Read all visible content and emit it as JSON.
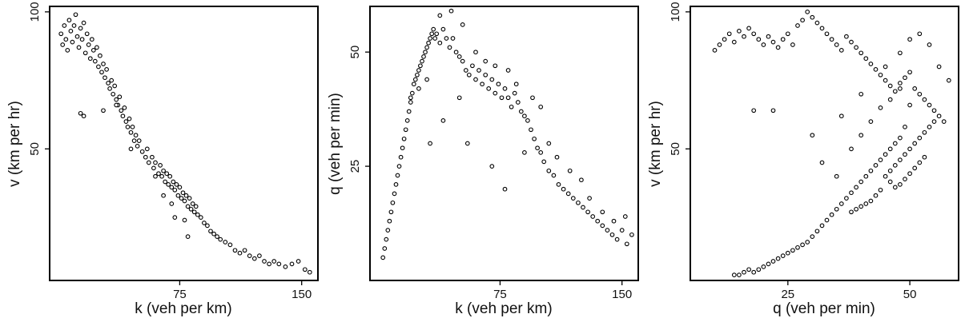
{
  "charts": [
    {
      "type": "scatter",
      "xlabel": "k (veh per km)",
      "ylabel": "v (km per hr)",
      "xticks": [
        75,
        150
      ],
      "yticks": [
        50,
        100
      ],
      "xlim": [
        -5,
        160
      ],
      "ylim": [
        2,
        102
      ]
    },
    {
      "type": "scatter",
      "xlabel": "k (veh per km)",
      "ylabel": "q (veh per min)",
      "xticks": [
        75,
        150
      ],
      "yticks": [
        25,
        50
      ],
      "xlim": [
        -5,
        160
      ],
      "ylim": [
        0,
        60
      ]
    },
    {
      "type": "scatter",
      "xlabel": "q (veh per min)",
      "ylabel": "v (km per hr)",
      "xticks": [
        25,
        50
      ],
      "yticks": [
        50,
        100
      ],
      "xlim": [
        5,
        60
      ],
      "ylim": [
        2,
        102
      ]
    }
  ],
  "chart_data": [
    {
      "type": "scatter",
      "xlabel": "k (veh per km)",
      "ylabel": "v (km per hr)",
      "xlim": [
        -5,
        160
      ],
      "ylim": [
        2,
        102
      ],
      "grid": false,
      "points": [
        [
          2,
          92
        ],
        [
          3,
          88
        ],
        [
          4,
          95
        ],
        [
          5,
          90
        ],
        [
          6,
          86
        ],
        [
          7,
          97
        ],
        [
          8,
          93
        ],
        [
          9,
          89
        ],
        [
          10,
          95
        ],
        [
          11,
          99
        ],
        [
          12,
          91
        ],
        [
          13,
          87
        ],
        [
          14,
          94
        ],
        [
          15,
          90
        ],
        [
          16,
          96
        ],
        [
          17,
          85
        ],
        [
          18,
          92
        ],
        [
          19,
          88
        ],
        [
          20,
          83
        ],
        [
          21,
          90
        ],
        [
          22,
          86
        ],
        [
          23,
          82
        ],
        [
          24,
          87
        ],
        [
          25,
          80
        ],
        [
          26,
          84
        ],
        [
          27,
          78
        ],
        [
          28,
          81
        ],
        [
          29,
          76
        ],
        [
          30,
          79
        ],
        [
          31,
          74
        ],
        [
          32,
          72
        ],
        [
          33,
          75
        ],
        [
          34,
          70
        ],
        [
          35,
          73
        ],
        [
          36,
          68
        ],
        [
          37,
          66
        ],
        [
          38,
          69
        ],
        [
          39,
          64
        ],
        [
          40,
          62
        ],
        [
          41,
          65
        ],
        [
          42,
          60
        ],
        [
          43,
          58
        ],
        [
          44,
          61
        ],
        [
          45,
          56
        ],
        [
          46,
          58
        ],
        [
          47,
          53
        ],
        [
          48,
          55
        ],
        [
          49,
          51
        ],
        [
          50,
          53
        ],
        [
          52,
          49
        ],
        [
          54,
          47
        ],
        [
          55,
          50
        ],
        [
          56,
          45
        ],
        [
          58,
          47
        ],
        [
          59,
          43
        ],
        [
          60,
          45
        ],
        [
          62,
          41
        ],
        [
          63,
          44
        ],
        [
          64,
          40
        ],
        [
          65,
          42
        ],
        [
          66,
          38
        ],
        [
          67,
          41
        ],
        [
          68,
          37
        ],
        [
          69,
          40
        ],
        [
          70,
          36
        ],
        [
          71,
          38
        ],
        [
          72,
          35
        ],
        [
          73,
          37
        ],
        [
          74,
          33
        ],
        [
          75,
          36
        ],
        [
          76,
          32
        ],
        [
          77,
          34
        ],
        [
          78,
          31
        ],
        [
          79,
          33
        ],
        [
          80,
          29
        ],
        [
          81,
          32
        ],
        [
          82,
          28
        ],
        [
          83,
          30
        ],
        [
          84,
          27
        ],
        [
          85,
          29
        ],
        [
          86,
          26
        ],
        [
          88,
          25
        ],
        [
          90,
          23
        ],
        [
          92,
          22
        ],
        [
          94,
          20
        ],
        [
          96,
          19
        ],
        [
          98,
          18
        ],
        [
          100,
          17
        ],
        [
          103,
          16
        ],
        [
          106,
          15
        ],
        [
          109,
          13
        ],
        [
          112,
          12
        ],
        [
          115,
          13
        ],
        [
          118,
          11
        ],
        [
          121,
          10
        ],
        [
          124,
          11
        ],
        [
          127,
          9
        ],
        [
          130,
          8
        ],
        [
          133,
          9
        ],
        [
          136,
          8
        ],
        [
          140,
          7
        ],
        [
          144,
          8
        ],
        [
          148,
          9
        ],
        [
          152,
          6
        ],
        [
          155,
          5
        ],
        [
          14,
          63
        ],
        [
          16,
          62
        ],
        [
          28,
          64
        ],
        [
          36,
          66
        ],
        [
          45,
          50
        ],
        [
          60,
          40
        ],
        [
          65,
          33
        ],
        [
          70,
          30
        ],
        [
          72,
          25
        ],
        [
          78,
          24
        ],
        [
          80,
          18
        ]
      ]
    },
    {
      "type": "scatter",
      "xlabel": "k (veh per km)",
      "ylabel": "q (veh per min)",
      "xlim": [
        -5,
        160
      ],
      "ylim": [
        0,
        60
      ],
      "grid": false,
      "points": [
        [
          3,
          5
        ],
        [
          4,
          7
        ],
        [
          5,
          9
        ],
        [
          6,
          11
        ],
        [
          7,
          13
        ],
        [
          8,
          15
        ],
        [
          9,
          17
        ],
        [
          10,
          19
        ],
        [
          11,
          21
        ],
        [
          12,
          23
        ],
        [
          13,
          25
        ],
        [
          14,
          27
        ],
        [
          15,
          29
        ],
        [
          16,
          31
        ],
        [
          17,
          33
        ],
        [
          18,
          35
        ],
        [
          19,
          37
        ],
        [
          20,
          39
        ],
        [
          21,
          41
        ],
        [
          22,
          43
        ],
        [
          23,
          44
        ],
        [
          24,
          45
        ],
        [
          25,
          46
        ],
        [
          26,
          47
        ],
        [
          27,
          48
        ],
        [
          28,
          49
        ],
        [
          29,
          50
        ],
        [
          30,
          51
        ],
        [
          31,
          52
        ],
        [
          32,
          53
        ],
        [
          33,
          54
        ],
        [
          34,
          55
        ],
        [
          35,
          53
        ],
        [
          36,
          54
        ],
        [
          38,
          52
        ],
        [
          40,
          55
        ],
        [
          42,
          53
        ],
        [
          44,
          51
        ],
        [
          46,
          53
        ],
        [
          48,
          50
        ],
        [
          50,
          49
        ],
        [
          52,
          48
        ],
        [
          54,
          46
        ],
        [
          56,
          45
        ],
        [
          58,
          47
        ],
        [
          60,
          44
        ],
        [
          62,
          46
        ],
        [
          64,
          43
        ],
        [
          66,
          45
        ],
        [
          68,
          42
        ],
        [
          70,
          44
        ],
        [
          72,
          41
        ],
        [
          74,
          43
        ],
        [
          76,
          40
        ],
        [
          78,
          42
        ],
        [
          80,
          40
        ],
        [
          82,
          38
        ],
        [
          84,
          41
        ],
        [
          86,
          39
        ],
        [
          88,
          37
        ],
        [
          90,
          36
        ],
        [
          92,
          35
        ],
        [
          94,
          33
        ],
        [
          96,
          31
        ],
        [
          98,
          29
        ],
        [
          100,
          28
        ],
        [
          102,
          26
        ],
        [
          105,
          24
        ],
        [
          108,
          23
        ],
        [
          111,
          21
        ],
        [
          114,
          20
        ],
        [
          117,
          19
        ],
        [
          120,
          18
        ],
        [
          123,
          17
        ],
        [
          126,
          16
        ],
        [
          129,
          15
        ],
        [
          132,
          14
        ],
        [
          135,
          13
        ],
        [
          138,
          12
        ],
        [
          141,
          11
        ],
        [
          144,
          10
        ],
        [
          147,
          9
        ],
        [
          150,
          11
        ],
        [
          153,
          8
        ],
        [
          156,
          10
        ],
        [
          38,
          58
        ],
        [
          45,
          59
        ],
        [
          52,
          56
        ],
        [
          60,
          50
        ],
        [
          66,
          48
        ],
        [
          72,
          47
        ],
        [
          80,
          46
        ],
        [
          85,
          43
        ],
        [
          95,
          40
        ],
        [
          100,
          38
        ],
        [
          105,
          30
        ],
        [
          110,
          27
        ],
        [
          118,
          24
        ],
        [
          125,
          22
        ],
        [
          130,
          18
        ],
        [
          138,
          15
        ],
        [
          145,
          13
        ],
        [
          152,
          14
        ],
        [
          20,
          40
        ],
        [
          25,
          42
        ],
        [
          30,
          44
        ],
        [
          32,
          30
        ],
        [
          40,
          35
        ],
        [
          50,
          40
        ],
        [
          55,
          30
        ],
        [
          70,
          25
        ],
        [
          78,
          20
        ],
        [
          90,
          28
        ]
      ]
    },
    {
      "type": "scatter",
      "xlabel": "q (veh per min)",
      "ylabel": "v (km per hr)",
      "xlim": [
        5,
        60
      ],
      "ylim": [
        2,
        102
      ],
      "grid": false,
      "points": [
        [
          10,
          86
        ],
        [
          11,
          88
        ],
        [
          12,
          90
        ],
        [
          13,
          92
        ],
        [
          14,
          89
        ],
        [
          15,
          93
        ],
        [
          16,
          91
        ],
        [
          17,
          94
        ],
        [
          18,
          92
        ],
        [
          19,
          90
        ],
        [
          20,
          88
        ],
        [
          21,
          91
        ],
        [
          22,
          89
        ],
        [
          23,
          87
        ],
        [
          24,
          90
        ],
        [
          25,
          92
        ],
        [
          26,
          88
        ],
        [
          27,
          95
        ],
        [
          28,
          97
        ],
        [
          29,
          100
        ],
        [
          30,
          98
        ],
        [
          31,
          96
        ],
        [
          32,
          94
        ],
        [
          33,
          92
        ],
        [
          34,
          90
        ],
        [
          35,
          88
        ],
        [
          36,
          86
        ],
        [
          37,
          91
        ],
        [
          38,
          89
        ],
        [
          39,
          87
        ],
        [
          40,
          85
        ],
        [
          41,
          83
        ],
        [
          42,
          81
        ],
        [
          43,
          79
        ],
        [
          44,
          77
        ],
        [
          45,
          75
        ],
        [
          46,
          73
        ],
        [
          47,
          71
        ],
        [
          48,
          74
        ],
        [
          49,
          76
        ],
        [
          50,
          78
        ],
        [
          51,
          72
        ],
        [
          52,
          70
        ],
        [
          53,
          68
        ],
        [
          54,
          66
        ],
        [
          55,
          64
        ],
        [
          56,
          62
        ],
        [
          57,
          60
        ],
        [
          49,
          58
        ],
        [
          48,
          54
        ],
        [
          47,
          52
        ],
        [
          46,
          50
        ],
        [
          45,
          48
        ],
        [
          44,
          46
        ],
        [
          43,
          44
        ],
        [
          42,
          42
        ],
        [
          41,
          40
        ],
        [
          40,
          38
        ],
        [
          39,
          36
        ],
        [
          38,
          34
        ],
        [
          37,
          32
        ],
        [
          36,
          30
        ],
        [
          35,
          28
        ],
        [
          34,
          26
        ],
        [
          33,
          24
        ],
        [
          32,
          22
        ],
        [
          31,
          20
        ],
        [
          30,
          18
        ],
        [
          29,
          16
        ],
        [
          28,
          15
        ],
        [
          27,
          14
        ],
        [
          26,
          13
        ],
        [
          25,
          12
        ],
        [
          24,
          11
        ],
        [
          23,
          10
        ],
        [
          22,
          9
        ],
        [
          21,
          8
        ],
        [
          20,
          7
        ],
        [
          19,
          6
        ],
        [
          18,
          5
        ],
        [
          17,
          6
        ],
        [
          16,
          5
        ],
        [
          15,
          4
        ],
        [
          14,
          4
        ],
        [
          45,
          40
        ],
        [
          46,
          42
        ],
        [
          47,
          44
        ],
        [
          48,
          46
        ],
        [
          49,
          48
        ],
        [
          50,
          50
        ],
        [
          51,
          52
        ],
        [
          52,
          54
        ],
        [
          53,
          56
        ],
        [
          54,
          58
        ],
        [
          55,
          60
        ],
        [
          44,
          35
        ],
        [
          43,
          33
        ],
        [
          42,
          31
        ],
        [
          41,
          30
        ],
        [
          40,
          29
        ],
        [
          39,
          28
        ],
        [
          38,
          27
        ],
        [
          46,
          38
        ],
        [
          47,
          36
        ],
        [
          48,
          37
        ],
        [
          49,
          39
        ],
        [
          50,
          41
        ],
        [
          51,
          43
        ],
        [
          52,
          45
        ],
        [
          53,
          47
        ],
        [
          18,
          64
        ],
        [
          22,
          64
        ],
        [
          30,
          55
        ],
        [
          36,
          62
        ],
        [
          40,
          70
        ],
        [
          45,
          80
        ],
        [
          48,
          85
        ],
        [
          50,
          90
        ],
        [
          52,
          92
        ],
        [
          54,
          88
        ],
        [
          56,
          80
        ],
        [
          58,
          75
        ],
        [
          42,
          60
        ],
        [
          44,
          65
        ],
        [
          46,
          68
        ],
        [
          48,
          72
        ],
        [
          50,
          66
        ],
        [
          35,
          40
        ],
        [
          32,
          45
        ],
        [
          38,
          50
        ],
        [
          40,
          55
        ]
      ]
    }
  ]
}
